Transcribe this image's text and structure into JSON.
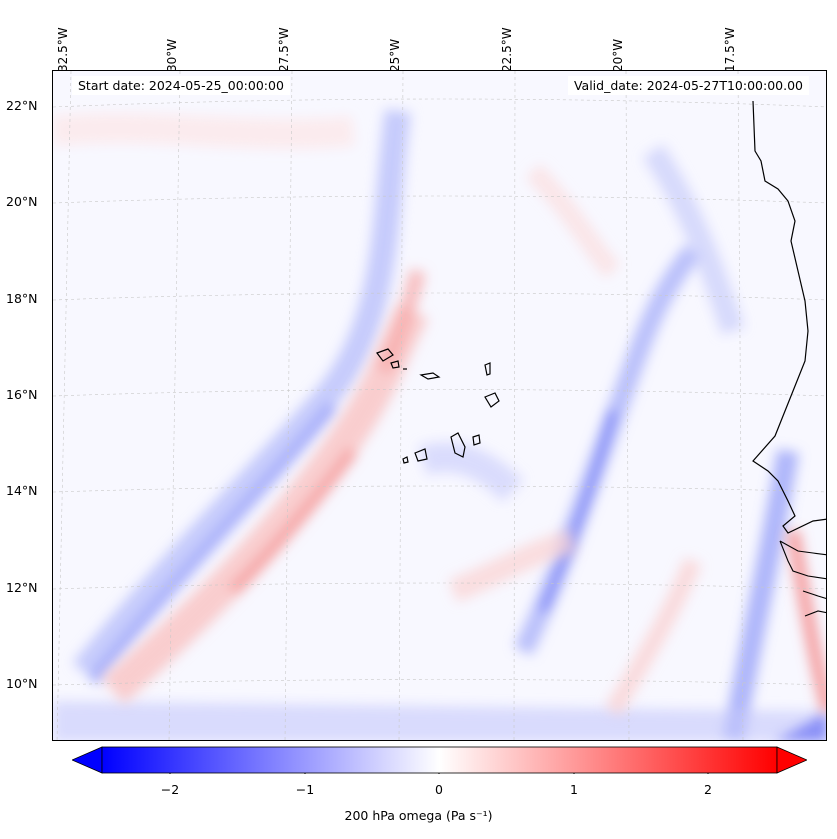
{
  "map": {
    "start_date": "Start date: 2024-05-25_00:00:00",
    "valid_date": "Valid_date: 2024-05-27T10:00:00.00",
    "longitude_labels": [
      "32.5°W",
      "30°W",
      "27.5°W",
      "25°W",
      "22.5°W",
      "20°W",
      "17.5°W"
    ],
    "latitude_labels": [
      "22°N",
      "20°N",
      "18°N",
      "16°N",
      "14°N",
      "12°N",
      "10°N"
    ],
    "islands": [
      "Santo Antão",
      "São Vicente",
      "Santa Luzia",
      "São Nicolau",
      "Sal",
      "Boa Vista",
      "Maio",
      "Santiago",
      "Fogo",
      "Brava"
    ],
    "colors": {
      "negative": "#0000ff",
      "neutral": "#ffffff",
      "positive": "#ff0000",
      "coastline": "#000000",
      "grid": "#bbbbbb"
    }
  },
  "colorbar": {
    "label": "200 hPa omega (Pa s⁻¹)",
    "ticks": [
      "−2",
      "−1",
      "0",
      "1",
      "2"
    ],
    "tick_values": [
      -2,
      -1,
      0,
      1,
      2
    ],
    "range": [
      -2.6,
      2.6
    ],
    "extend": "both"
  }
}
